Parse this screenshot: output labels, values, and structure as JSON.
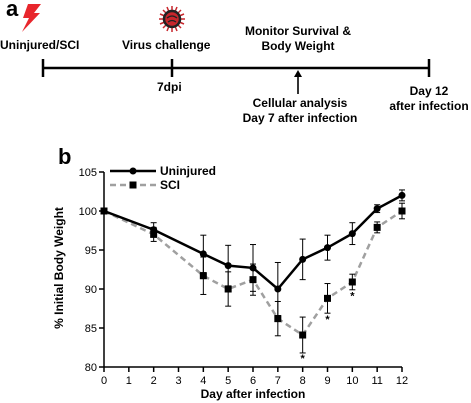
{
  "panel_a": {
    "label": "a",
    "events": {
      "start": "Uninjured/SCI",
      "virus": "Virus challenge",
      "virus_day": "7dpi",
      "monitor_line1": "Monitor Survival &",
      "monitor_line2": "Body Weight",
      "cellular_line1": "Cellular analysis",
      "cellular_line2": "Day 7 after infection",
      "end_line1": "Day 12",
      "end_line2": "after infection"
    },
    "icons": [
      "lightning-bolt-icon",
      "virus-icon",
      "arrow-up-icon"
    ],
    "colors": {
      "bolt": "#e8262c",
      "virus": "#c8262c"
    }
  },
  "panel_b": {
    "label": "b"
  },
  "chart_data": {
    "type": "line",
    "xlabel": "Day after infection",
    "ylabel": "% Initial Body Weight",
    "x": [
      0,
      2,
      4,
      5,
      6,
      7,
      8,
      9,
      10,
      11,
      12
    ],
    "xlim": [
      0,
      12
    ],
    "ylim": [
      80,
      105
    ],
    "xticks": [
      0,
      1,
      2,
      3,
      4,
      5,
      6,
      7,
      8,
      9,
      10,
      11,
      12
    ],
    "yticks": [
      80,
      85,
      90,
      95,
      100,
      105
    ],
    "grid": false,
    "legend_position": "top-left",
    "series": [
      {
        "name": "Uninjured",
        "values": [
          100,
          97.6,
          94.5,
          93.0,
          92.7,
          90.0,
          93.8,
          95.3,
          97.1,
          100.3,
          102.0
        ],
        "errors": [
          0,
          0.9,
          2.4,
          2.6,
          3.0,
          3.4,
          2.6,
          1.6,
          1.4,
          0.5,
          0.7
        ],
        "color": "#000000",
        "style": "solid",
        "marker": "circle"
      },
      {
        "name": "SCI",
        "values": [
          100,
          97.0,
          91.7,
          90.0,
          91.2,
          86.2,
          84.1,
          88.8,
          90.9,
          97.9,
          100.0
        ],
        "errors": [
          0,
          0.9,
          2.4,
          2.2,
          2.0,
          2.2,
          2.3,
          1.9,
          1.0,
          0.7,
          1.0
        ],
        "color": "#a0a0a0",
        "style": "dashed",
        "marker": "square"
      }
    ],
    "annotations": [
      {
        "x": 8,
        "y": 81.4,
        "text": "*"
      },
      {
        "x": 9,
        "y": 86.4,
        "text": "*"
      },
      {
        "x": 10,
        "y": 89.4,
        "text": "*"
      }
    ]
  }
}
